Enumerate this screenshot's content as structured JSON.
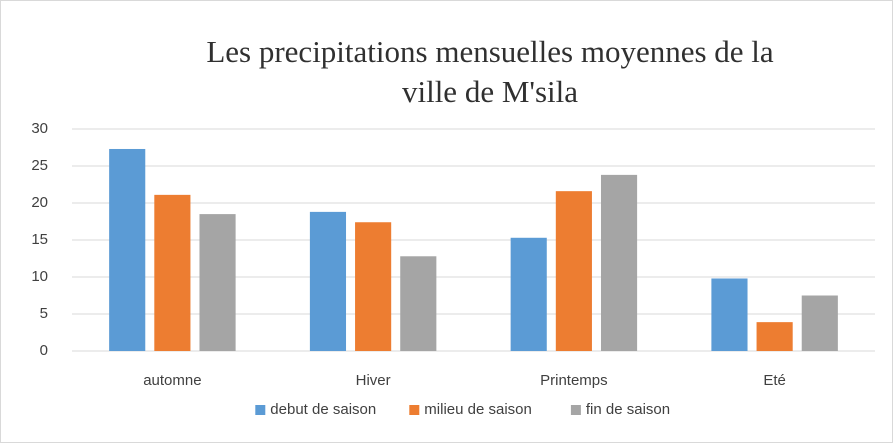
{
  "chart_data": {
    "type": "bar",
    "title": [
      "Les precipitations mensuelles moyennes de la",
      "ville de M'sila"
    ],
    "categories": [
      "automne",
      "Hiver",
      "Printemps",
      "Eté"
    ],
    "series": [
      {
        "name": "debut de saison",
        "color": "#5b9bd5",
        "values": [
          27.3,
          18.8,
          15.3,
          9.8
        ]
      },
      {
        "name": "milieu de saison",
        "color": "#ed7d31",
        "values": [
          21.1,
          17.4,
          21.6,
          3.9
        ]
      },
      {
        "name": "fin de saison",
        "color": "#a5a5a5",
        "values": [
          18.5,
          12.8,
          23.8,
          7.5
        ]
      }
    ],
    "ylim": [
      0,
      30
    ],
    "yticks": [
      0,
      5,
      10,
      15,
      20,
      25,
      30
    ],
    "grid": true,
    "legend": "bottom"
  }
}
